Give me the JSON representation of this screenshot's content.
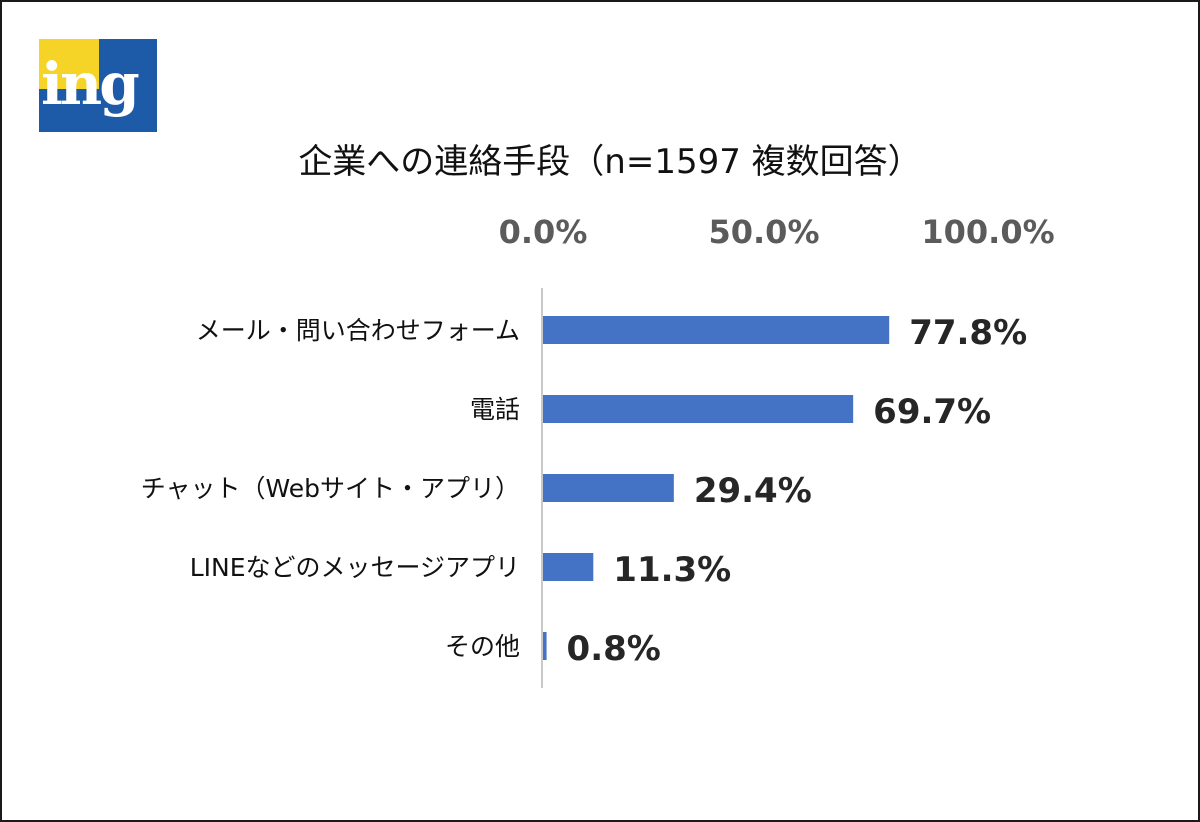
{
  "logo": {
    "text": "ing"
  },
  "colors": {
    "bar": "#4472c4",
    "logo_bg": "#1d5aa8",
    "logo_accent": "#f5d327"
  },
  "chart_data": {
    "type": "bar",
    "orientation": "horizontal",
    "title": "企業への連絡手段（n=1597 複数回答）",
    "unit": "%",
    "xlim": [
      0,
      100
    ],
    "tick_values": [
      0,
      50,
      100
    ],
    "tick_labels": [
      "0.0%",
      "50.0%",
      "100.0%"
    ],
    "tick_position": "top",
    "grid": false,
    "categories": [
      "メール・問い合わせフォーム",
      "電話",
      "チャット（Webサイト・アプリ）",
      "LINEなどのメッセージアプリ",
      "その他"
    ],
    "values": [
      77.8,
      69.7,
      29.4,
      11.3,
      0.8
    ],
    "data_labels": [
      "77.8%",
      "69.7%",
      "29.4%",
      "11.3%",
      "0.8%"
    ]
  }
}
